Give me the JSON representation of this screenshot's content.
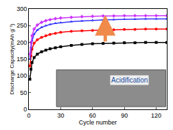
{
  "chart_data": {
    "type": "line",
    "x_label": "Cycle number",
    "y_label": "Discharge Capacity(mAh g⁻¹)",
    "x": [
      1,
      2,
      3,
      5,
      8,
      12,
      16,
      20,
      25,
      30,
      40,
      50,
      60,
      70,
      80,
      90,
      100,
      110,
      120,
      130
    ],
    "series": [
      {
        "color": "#000000",
        "marker": "square",
        "values": [
          90,
          120,
          140,
          155,
          165,
          172,
          177,
          181,
          184,
          187,
          191,
          194,
          196,
          197,
          198,
          199,
          199,
          200,
          200,
          200
        ]
      },
      {
        "color": "#ff0000",
        "marker": "circle",
        "values": [
          130,
          160,
          180,
          198,
          208,
          215,
          220,
          224,
          227,
          230,
          233,
          235,
          236,
          237,
          238,
          239,
          239,
          240,
          240,
          240
        ]
      },
      {
        "color": "#3333ff",
        "marker": "triangle-up",
        "values": [
          150,
          185,
          205,
          225,
          237,
          245,
          250,
          254,
          257,
          259,
          262,
          264,
          266,
          267,
          268,
          269,
          269,
          270,
          270,
          270
        ]
      },
      {
        "color": "#cc33ff",
        "marker": "diamond",
        "values": [
          165,
          200,
          220,
          240,
          252,
          260,
          265,
          268,
          271,
          273,
          275,
          277,
          278,
          279,
          279,
          280,
          280,
          280,
          280,
          280
        ]
      }
    ],
    "annotations": [
      "Acidification"
    ],
    "xlim": [
      0,
      130
    ],
    "xticks": [
      0,
      30,
      60,
      90,
      120
    ],
    "ylim": [
      0,
      300
    ],
    "yticks": [
      0,
      50,
      100,
      150,
      200,
      250,
      300
    ],
    "grid": false
  }
}
